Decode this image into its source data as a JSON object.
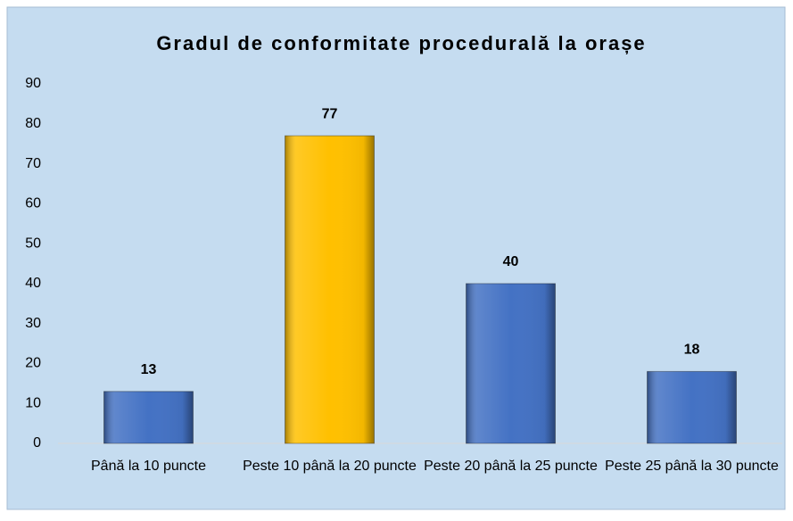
{
  "chart_data": {
    "type": "bar",
    "title": "Gradul de conformitate procedurală la orașe",
    "categories": [
      "Până la 10 puncte",
      "Peste 10 până la 20 puncte",
      "Peste 20 până la 25 puncte",
      "Peste 25 până la 30 puncte"
    ],
    "values": [
      13,
      77,
      40,
      18
    ],
    "colors": [
      "#4472c4",
      "#ffc000",
      "#4472c4",
      "#4472c4"
    ],
    "ylim": [
      0,
      90
    ],
    "yticks": [
      0,
      10,
      20,
      30,
      40,
      50,
      60,
      70,
      80,
      90
    ],
    "grid": false
  }
}
